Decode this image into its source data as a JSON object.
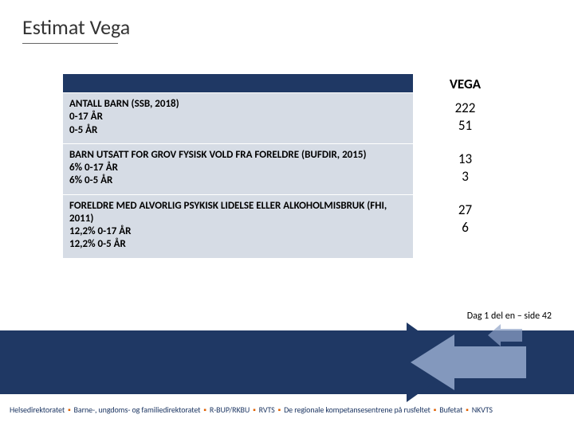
{
  "title": "Estimat Vega",
  "table": {
    "header_right": "VEGA",
    "rows": [
      {
        "label": "ANTALL BARN (SSB, 2018)\n0-17 ÅR\n0-5 ÅR",
        "values": [
          "222",
          "51"
        ]
      },
      {
        "label": "BARN UTSATT FOR GROV FYSISK VOLD FRA FORELDRE (BUFDIR, 2015)\n6% 0-17 ÅR\n6% 0-5 ÅR",
        "values": [
          "13",
          "3"
        ]
      },
      {
        "label": "FORELDRE MED ALVORLIG PSYKISK LIDELSE ELLER ALKOHOLMISBRUK (FHI, 2011)\n12,2% 0-17 ÅR\n12,2% 0-5 ÅR",
        "values": [
          "27",
          "6"
        ]
      }
    ]
  },
  "pagefoot": "Dag 1 del en – side 42",
  "footer_parts": [
    "Helsedirektoratet",
    "Barne-, ungdoms- og familiedirektoratet",
    "R-BUP/RKBU",
    "RVTS",
    "De regionale kompetansesentrene på rusfeltet",
    "Bufetat",
    "NKVTS"
  ],
  "colors": {
    "brand_dark": "#1f3864",
    "row_bg": "#d6dce5",
    "accent": "#e06000",
    "arrow_dark": "#1f3864",
    "arrow_light": "#8ea3c7"
  }
}
